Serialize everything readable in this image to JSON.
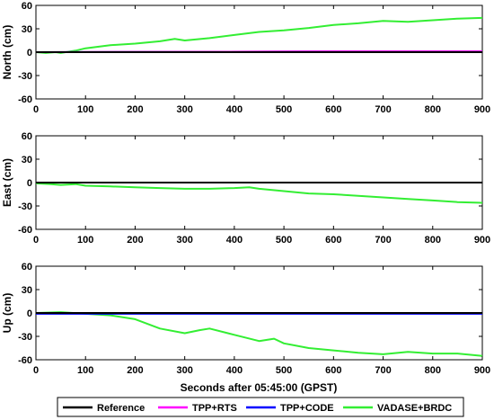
{
  "chart_data": [
    {
      "type": "line",
      "ylabel": "North (cm)",
      "xlabel": "",
      "xlim": [
        0,
        900
      ],
      "ylim": [
        -60,
        60
      ],
      "xticks": [
        0,
        100,
        200,
        300,
        400,
        500,
        600,
        700,
        800,
        900
      ],
      "yticks": [
        -60,
        -30,
        0,
        30,
        60
      ],
      "grid": false,
      "series": [
        {
          "name": "Reference",
          "color": "#000000",
          "x": [
            0,
            900
          ],
          "y": [
            0,
            0
          ]
        },
        {
          "name": "TPP+RTS",
          "color": "#ff00ff",
          "x": [
            0,
            300,
            600,
            900
          ],
          "y": [
            0,
            0.5,
            1,
            1
          ]
        },
        {
          "name": "TPP+CODE",
          "color": "#0000ff",
          "x": [
            0,
            300,
            600,
            900
          ],
          "y": [
            0,
            0.5,
            1,
            1
          ]
        },
        {
          "name": "VADASE+BRDC",
          "color": "#33ee33",
          "x": [
            0,
            20,
            40,
            50,
            60,
            80,
            100,
            150,
            200,
            250,
            280,
            300,
            350,
            400,
            450,
            500,
            550,
            600,
            650,
            700,
            750,
            800,
            850,
            900
          ],
          "y": [
            0,
            -1,
            0,
            -1,
            0,
            2,
            5,
            9,
            11,
            14,
            17,
            15,
            18,
            22,
            26,
            28,
            31,
            35,
            37,
            40,
            39,
            41,
            43,
            44
          ]
        }
      ]
    },
    {
      "type": "line",
      "ylabel": "East (cm)",
      "xlabel": "",
      "xlim": [
        0,
        900
      ],
      "ylim": [
        -60,
        60
      ],
      "xticks": [
        0,
        100,
        200,
        300,
        400,
        500,
        600,
        700,
        800,
        900
      ],
      "yticks": [
        -60,
        -30,
        0,
        30,
        60
      ],
      "grid": false,
      "series": [
        {
          "name": "Reference",
          "color": "#000000",
          "x": [
            0,
            900
          ],
          "y": [
            0,
            0
          ]
        },
        {
          "name": "TPP+RTS",
          "color": "#ff00ff",
          "x": [
            0,
            450,
            900
          ],
          "y": [
            0,
            0,
            0
          ]
        },
        {
          "name": "TPP+CODE",
          "color": "#0000ff",
          "x": [
            0,
            450,
            900
          ],
          "y": [
            0,
            0,
            0
          ]
        },
        {
          "name": "VADASE+BRDC",
          "color": "#33ee33",
          "x": [
            0,
            30,
            50,
            80,
            100,
            150,
            200,
            250,
            300,
            350,
            400,
            430,
            450,
            500,
            550,
            600,
            650,
            700,
            750,
            800,
            850,
            900
          ],
          "y": [
            -1,
            -2,
            -3,
            -2,
            -4,
            -5,
            -6,
            -7,
            -8,
            -8,
            -7,
            -6,
            -8,
            -11,
            -14,
            -15,
            -17,
            -19,
            -21,
            -23,
            -25,
            -26
          ]
        }
      ]
    },
    {
      "type": "line",
      "ylabel": "Up (cm)",
      "xlabel": "Seconds after 05:45:00 (GPST)",
      "xlim": [
        0,
        900
      ],
      "ylim": [
        -60,
        60
      ],
      "xticks": [
        0,
        100,
        200,
        300,
        400,
        500,
        600,
        700,
        800,
        900
      ],
      "yticks": [
        -60,
        -30,
        0,
        30,
        60
      ],
      "grid": false,
      "series": [
        {
          "name": "Reference",
          "color": "#000000",
          "x": [
            0,
            900
          ],
          "y": [
            0,
            0
          ]
        },
        {
          "name": "TPP+RTS",
          "color": "#ff00ff",
          "x": [
            0,
            450,
            900
          ],
          "y": [
            0,
            0,
            0
          ]
        },
        {
          "name": "TPP+CODE",
          "color": "#0000ff",
          "x": [
            0,
            450,
            900
          ],
          "y": [
            -1,
            -1,
            -1
          ]
        },
        {
          "name": "VADASE+BRDC",
          "color": "#33ee33",
          "x": [
            0,
            50,
            100,
            150,
            200,
            250,
            300,
            330,
            350,
            400,
            450,
            480,
            500,
            550,
            600,
            650,
            700,
            750,
            800,
            850,
            900
          ],
          "y": [
            0,
            1,
            -1,
            -3,
            -8,
            -20,
            -26,
            -22,
            -20,
            -28,
            -36,
            -33,
            -39,
            -45,
            -48,
            -51,
            -53,
            -50,
            -52,
            -52,
            -55
          ]
        }
      ]
    }
  ],
  "legend": {
    "placement": "bottom",
    "items": [
      {
        "label": "Reference",
        "color": "#000000"
      },
      {
        "label": "TPP+RTS",
        "color": "#ff00ff"
      },
      {
        "label": "TPP+CODE",
        "color": "#0000ff"
      },
      {
        "label": "VADASE+BRDC",
        "color": "#33ee33"
      }
    ]
  }
}
